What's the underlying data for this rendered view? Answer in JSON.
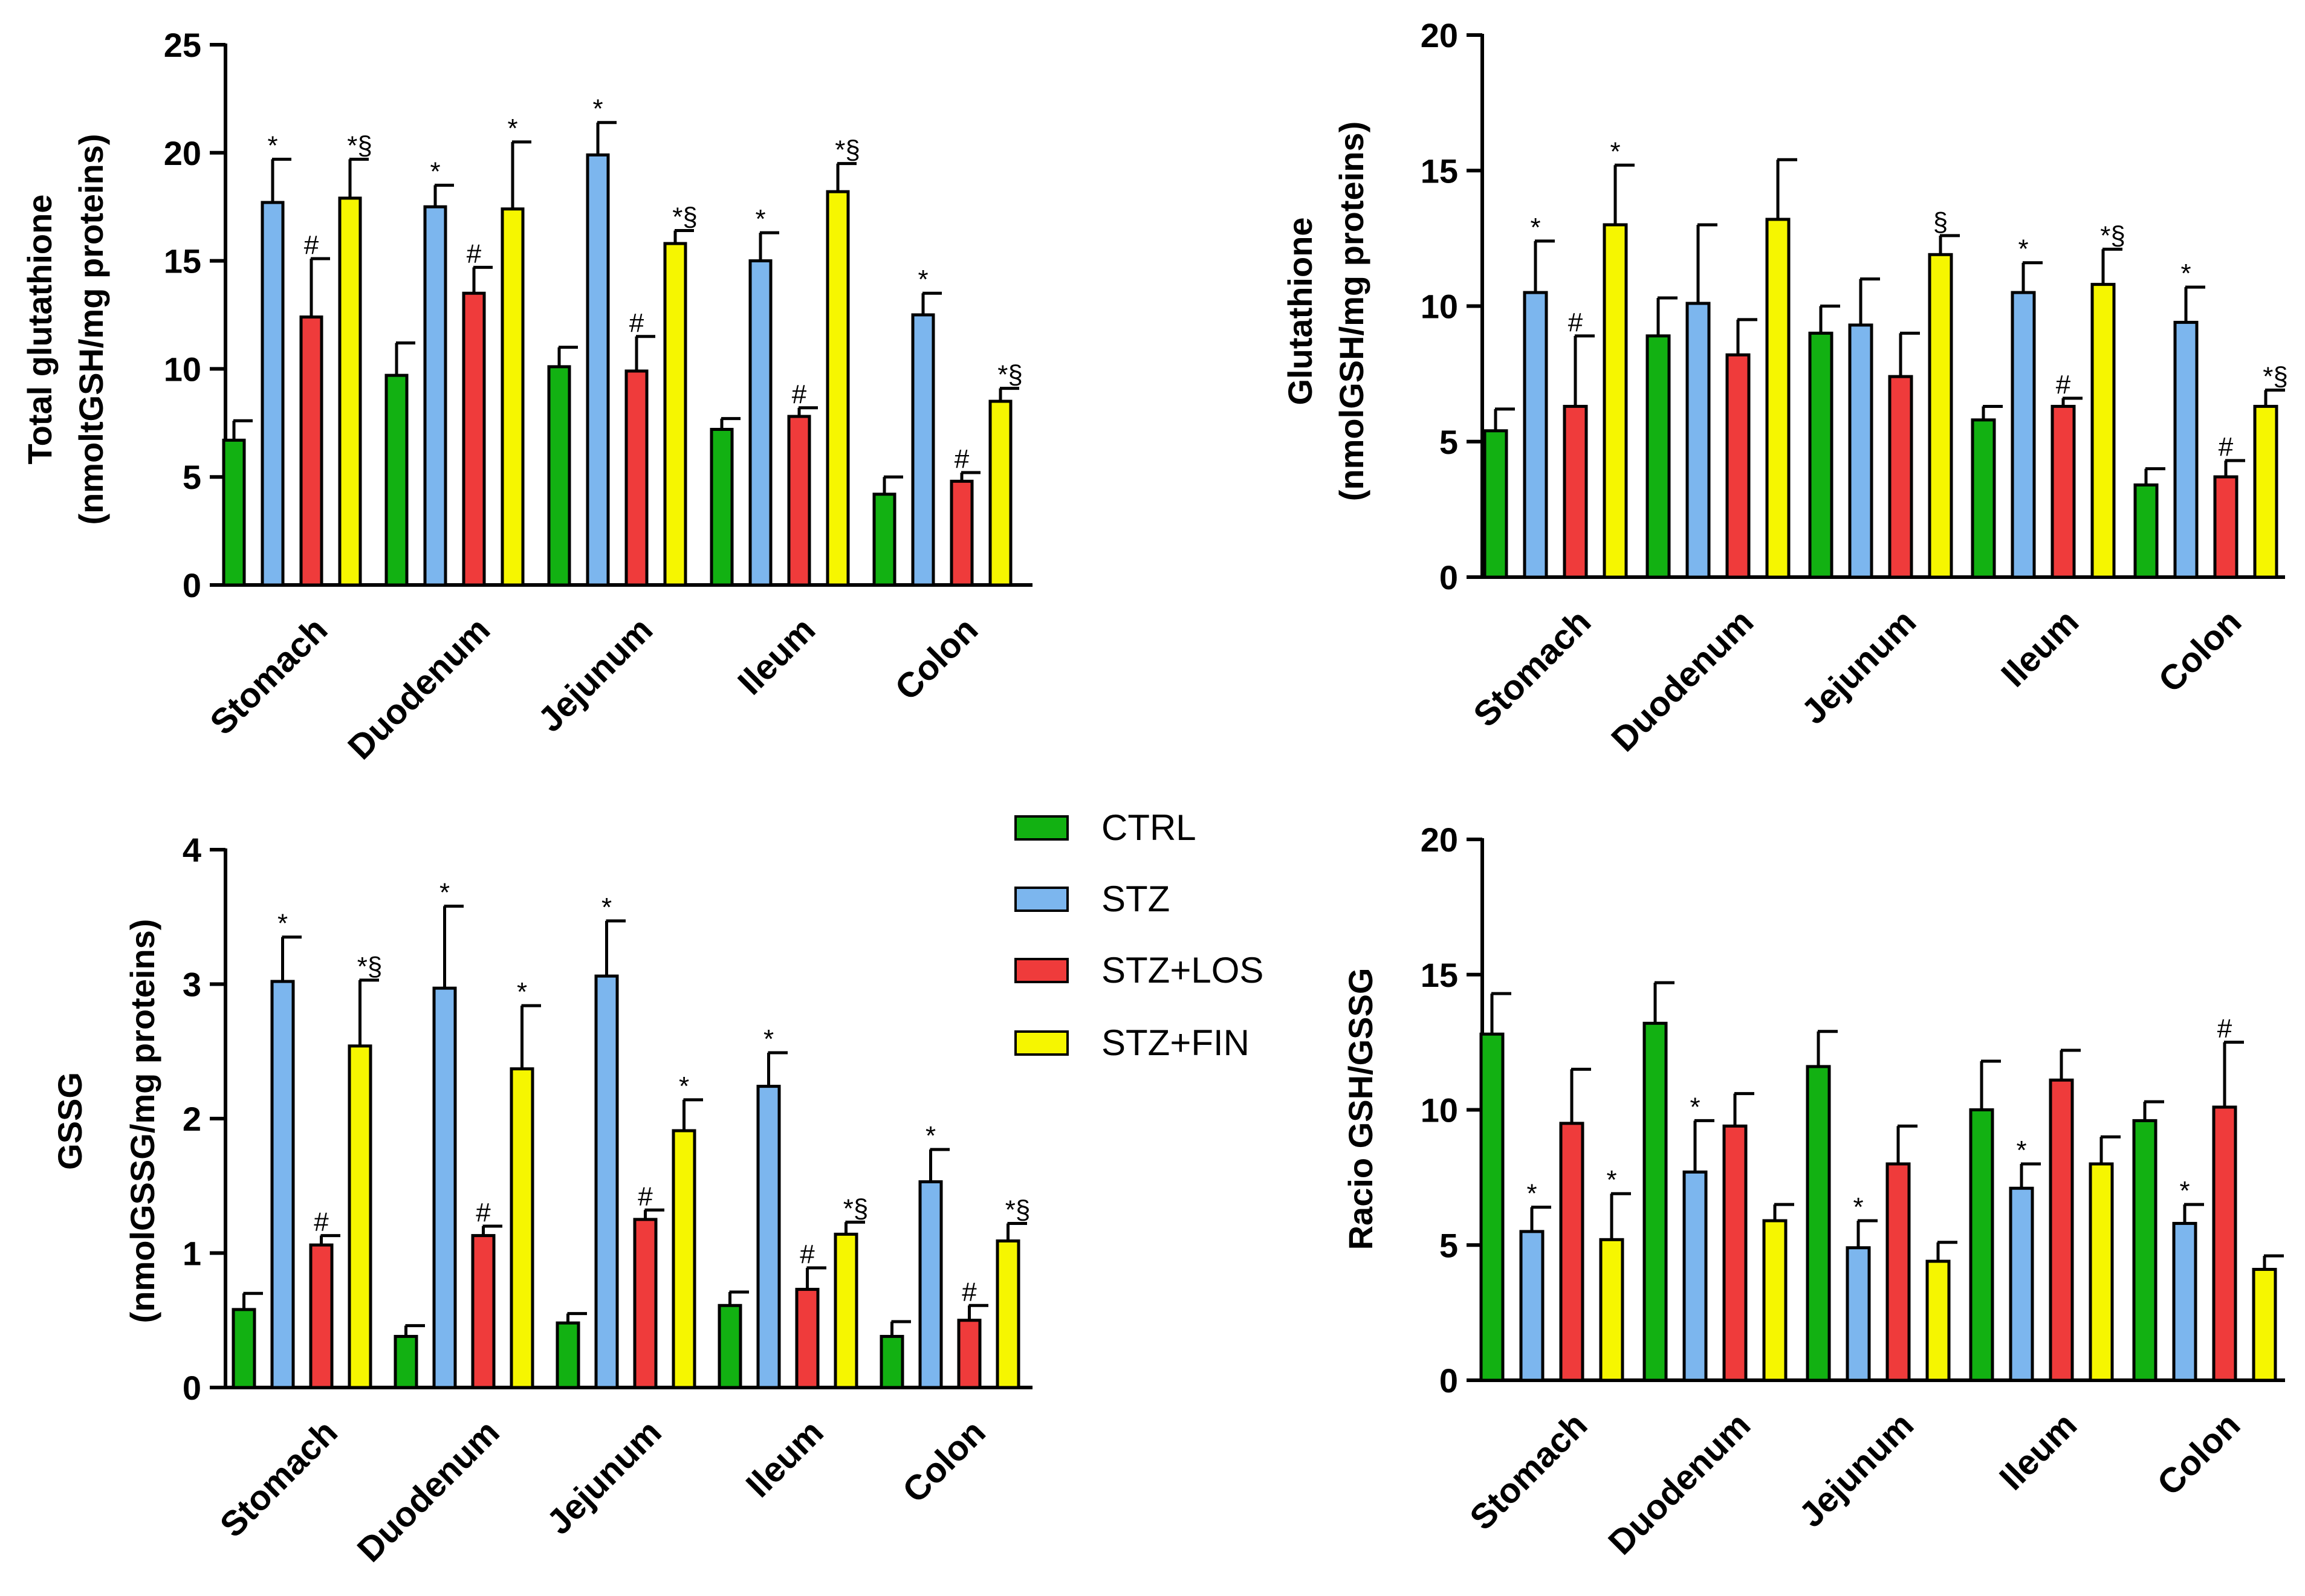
{
  "colors": {
    "CTRL": "#12b112",
    "STZ": "#7cb6ee",
    "STZ+LOS": "#ef3b3b",
    "STZ+FIN": "#f6f600",
    "axis": "#000000"
  },
  "legend": {
    "items": [
      {
        "name": "CTRL",
        "label": "CTRL"
      },
      {
        "name": "STZ",
        "label": "STZ"
      },
      {
        "name": "STZ+LOS",
        "label": "STZ+LOS"
      },
      {
        "name": "STZ+FIN",
        "label": "STZ+FIN"
      }
    ]
  },
  "chart_data": [
    {
      "id": "total-glutathione",
      "type": "bar",
      "ylabel_line1": "Total glutathione",
      "ylabel_line2": "(nmoltGSH/mg proteins)",
      "ylim": [
        0,
        25
      ],
      "yticks": [
        "0",
        "5",
        "10",
        "15",
        "20",
        "25"
      ],
      "categories": [
        "Stomach",
        "Duodenum",
        "Jejunum",
        "Ileum",
        "Colon"
      ],
      "series": [
        {
          "name": "CTRL",
          "values": [
            6.7,
            9.7,
            10.1,
            7.2,
            4.2
          ],
          "errors": [
            0.9,
            1.5,
            0.9,
            0.5,
            0.8
          ],
          "annotations": [
            "",
            "",
            "",
            "",
            ""
          ]
        },
        {
          "name": "STZ",
          "values": [
            17.7,
            17.5,
            19.9,
            15.0,
            12.5
          ],
          "errors": [
            2.0,
            1.0,
            1.5,
            1.3,
            1.0
          ],
          "annotations": [
            "*",
            "*",
            "*",
            "*",
            "*"
          ]
        },
        {
          "name": "STZ+LOS",
          "values": [
            12.4,
            13.5,
            9.9,
            7.8,
            4.8
          ],
          "errors": [
            2.7,
            1.2,
            1.6,
            0.4,
            0.4
          ],
          "annotations": [
            "#",
            "#",
            "#",
            "#",
            "#"
          ]
        },
        {
          "name": "STZ+FIN",
          "values": [
            17.9,
            17.4,
            15.8,
            18.2,
            8.5
          ],
          "errors": [
            1.8,
            3.1,
            0.6,
            1.3,
            0.6
          ],
          "annotations": [
            "*§",
            "*",
            "*§",
            "*§",
            "*§"
          ]
        }
      ]
    },
    {
      "id": "glutathione",
      "type": "bar",
      "ylabel_line1": "Glutathione",
      "ylabel_line2": "(nmolGSH/mg proteins)",
      "ylim": [
        0,
        20
      ],
      "yticks": [
        "0",
        "5",
        "10",
        "15",
        "20"
      ],
      "categories": [
        "Stomach",
        "Duodenum",
        "Jejunum",
        "Ileum",
        "Colon"
      ],
      "series": [
        {
          "name": "CTRL",
          "values": [
            5.4,
            8.9,
            9.0,
            5.8,
            3.4
          ],
          "errors": [
            0.8,
            1.4,
            1.0,
            0.5,
            0.6
          ],
          "annotations": [
            "",
            "",
            "",
            "",
            ""
          ]
        },
        {
          "name": "STZ",
          "values": [
            10.5,
            10.1,
            9.3,
            10.5,
            9.4
          ],
          "errors": [
            1.9,
            2.9,
            1.7,
            1.1,
            1.3
          ],
          "annotations": [
            "*",
            "",
            "",
            "*",
            "*"
          ]
        },
        {
          "name": "STZ+LOS",
          "values": [
            6.3,
            8.2,
            7.4,
            6.3,
            3.7
          ],
          "errors": [
            2.6,
            1.3,
            1.6,
            0.3,
            0.6
          ],
          "annotations": [
            "#",
            "",
            "",
            "#",
            "#"
          ]
        },
        {
          "name": "STZ+FIN",
          "values": [
            13.0,
            13.2,
            11.9,
            10.8,
            6.3
          ],
          "errors": [
            2.2,
            2.2,
            0.7,
            1.3,
            0.6
          ],
          "annotations": [
            "*",
            "",
            "§",
            "*§",
            "*§"
          ]
        }
      ]
    },
    {
      "id": "gssg",
      "type": "bar",
      "ylabel_line1": "GSSG",
      "ylabel_line2": "(nmolGSSG/mg proteins)",
      "ylim": [
        0,
        4
      ],
      "yticks": [
        "0",
        "1",
        "2",
        "3",
        "4"
      ],
      "categories": [
        "Stomach",
        "Duodenum",
        "Jejunum",
        "Ileum",
        "Colon"
      ],
      "series": [
        {
          "name": "CTRL",
          "values": [
            0.58,
            0.38,
            0.48,
            0.61,
            0.38
          ],
          "errors": [
            0.12,
            0.08,
            0.07,
            0.1,
            0.11
          ],
          "annotations": [
            "",
            "",
            "",
            "",
            ""
          ]
        },
        {
          "name": "STZ",
          "values": [
            3.02,
            2.97,
            3.06,
            2.24,
            1.53
          ],
          "errors": [
            0.33,
            0.61,
            0.41,
            0.25,
            0.24
          ],
          "annotations": [
            "*",
            "*",
            "*",
            "*",
            "*"
          ]
        },
        {
          "name": "STZ+LOS",
          "values": [
            1.06,
            1.13,
            1.25,
            0.73,
            0.5
          ],
          "errors": [
            0.07,
            0.07,
            0.07,
            0.16,
            0.11
          ],
          "annotations": [
            "#",
            "#",
            "#",
            "#",
            "#"
          ]
        },
        {
          "name": "STZ+FIN",
          "values": [
            2.54,
            2.37,
            1.91,
            1.14,
            1.09
          ],
          "errors": [
            0.49,
            0.47,
            0.23,
            0.09,
            0.13
          ],
          "annotations": [
            "*§",
            "*",
            "*",
            "*§",
            "*§"
          ]
        }
      ]
    },
    {
      "id": "ratio-gsh-gssg",
      "type": "bar",
      "ylabel_line1": "",
      "ylabel_line2": "Racio GSH/GSSG",
      "ylim": [
        0,
        20
      ],
      "yticks": [
        "0",
        "5",
        "10",
        "15",
        "20"
      ],
      "categories": [
        "Stomach",
        "Duodenum",
        "Jejunum",
        "Ileum",
        "Colon"
      ],
      "series": [
        {
          "name": "CTRL",
          "values": [
            12.8,
            13.2,
            11.6,
            10.0,
            9.6
          ],
          "errors": [
            1.5,
            1.5,
            1.3,
            1.8,
            0.7
          ],
          "annotations": [
            "",
            "",
            "",
            "",
            ""
          ]
        },
        {
          "name": "STZ",
          "values": [
            5.5,
            7.7,
            4.9,
            7.1,
            5.8
          ],
          "errors": [
            0.9,
            1.9,
            1.0,
            0.9,
            0.7
          ],
          "annotations": [
            "*",
            "*",
            "*",
            "*",
            "*"
          ]
        },
        {
          "name": "STZ+LOS",
          "values": [
            9.5,
            9.4,
            8.0,
            11.1,
            10.1
          ],
          "errors": [
            2.0,
            1.2,
            1.4,
            1.1,
            2.4
          ],
          "annotations": [
            "",
            "",
            "",
            "",
            "#"
          ]
        },
        {
          "name": "STZ+FIN",
          "values": [
            5.2,
            5.9,
            4.4,
            8.0,
            4.1
          ],
          "errors": [
            1.7,
            0.6,
            0.7,
            1.0,
            0.5
          ],
          "annotations": [
            "*",
            "",
            "",
            "",
            ""
          ]
        }
      ]
    }
  ]
}
